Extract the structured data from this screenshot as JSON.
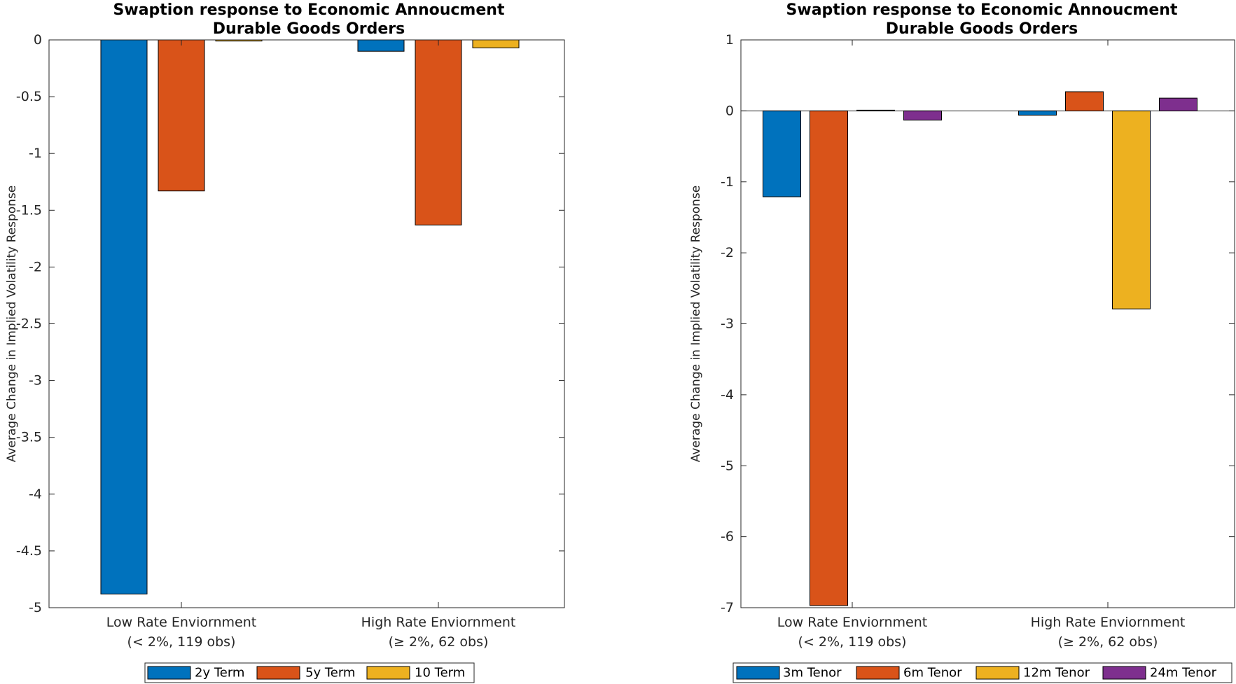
{
  "chart_data": [
    {
      "type": "bar",
      "title": "Swaption response to Economic Annoucment",
      "subtitle": "Durable Goods Orders",
      "ylabel": "Average Change in Implied Volatility Response",
      "xlabel": "",
      "ylim": [
        -5,
        0
      ],
      "yticks": [
        0,
        -0.5,
        -1,
        -1.5,
        -2,
        -2.5,
        -3,
        -3.5,
        -4,
        -4.5,
        -5
      ],
      "yticklabels": [
        "0",
        "-0.5",
        "-1",
        "-1.5",
        "-2",
        "-2.5",
        "-3",
        "-3.5",
        "-4",
        "-4.5",
        "-5"
      ],
      "categories": [
        [
          "Low Rate Enviornment",
          "(< 2%, 119 obs)"
        ],
        [
          "High Rate Enviornment",
          "(≥ 2%, 62 obs)"
        ]
      ],
      "series": [
        {
          "name": "2y Term",
          "color": "#0072BD",
          "values": [
            -4.88,
            -0.1
          ]
        },
        {
          "name": "5y Term",
          "color": "#D95319",
          "values": [
            -1.33,
            -1.63
          ]
        },
        {
          "name": "10 Term",
          "color": "#EDB120",
          "values": [
            -0.01,
            -0.07
          ]
        }
      ],
      "grid": false,
      "legend_placement": "bottom"
    },
    {
      "type": "bar",
      "title": "Swaption response to Economic Annoucment",
      "subtitle": "Durable Goods Orders",
      "ylabel": "Average Change in Implied Volatility Response",
      "xlabel": "",
      "ylim": [
        -7,
        1
      ],
      "yticks": [
        1,
        0,
        -1,
        -2,
        -3,
        -4,
        -5,
        -6,
        -7
      ],
      "yticklabels": [
        "1",
        "0",
        "-1",
        "-2",
        "-3",
        "-4",
        "-5",
        "-6",
        "-7"
      ],
      "categories": [
        [
          "Low Rate Enviornment",
          "(< 2%, 119 obs)"
        ],
        [
          "High Rate Enviornment",
          "(≥ 2%, 62 obs)"
        ]
      ],
      "series": [
        {
          "name": "3m Tenor",
          "color": "#0072BD",
          "values": [
            -1.21,
            -0.06
          ]
        },
        {
          "name": "6m Tenor",
          "color": "#D95319",
          "values": [
            -6.97,
            0.27
          ]
        },
        {
          "name": "12m Tenor",
          "color": "#EDB120",
          "values": [
            0.01,
            -2.79
          ]
        },
        {
          "name": "24m Tenor",
          "color": "#7E2F8E",
          "values": [
            -0.13,
            0.18
          ]
        }
      ],
      "grid": false,
      "legend_placement": "bottom"
    }
  ]
}
